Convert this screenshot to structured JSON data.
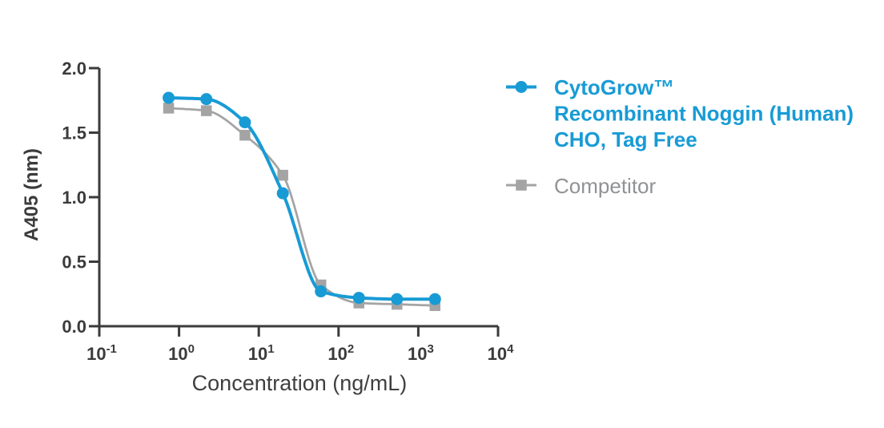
{
  "chart_data": {
    "type": "line",
    "title": "",
    "xlabel": "Concentration (ng/mL)",
    "ylabel": "A405 (nm)",
    "x_scale": "log10",
    "xlim_log": [
      -1,
      4
    ],
    "ylim": [
      0,
      2
    ],
    "grid": false,
    "legend_position": "right",
    "axis_color": "#3b3b3b",
    "x_tick_base": "10",
    "x_tick_exponents": [
      "-1",
      "0",
      "1",
      "2",
      "3",
      "4"
    ],
    "y_tick_values": [
      0,
      0.5,
      1,
      1.5,
      2
    ],
    "y_tick_labels": [
      "0.0",
      "0.5",
      "1.0",
      "1.5",
      "2.0"
    ],
    "series": [
      {
        "name": "CytoGrow™ Recombinant Noggin (Human) CHO, Tag Free",
        "legend_lines": [
          "CytoGrow™",
          "Recombinant Noggin (Human)",
          "CHO, Tag Free"
        ],
        "marker": "circle",
        "color": "#189bd5",
        "text_color": "#189bd5",
        "line_width": 4,
        "marker_size": 15,
        "x": [
          0.74,
          2.2,
          6.7,
          20,
          60,
          180,
          540,
          1620
        ],
        "y": [
          1.77,
          1.76,
          1.58,
          1.03,
          0.27,
          0.22,
          0.21,
          0.21
        ]
      },
      {
        "name": "Competitor",
        "legend_lines": [
          "Competitor"
        ],
        "marker": "square",
        "color": "#a4a4a4",
        "text_color": "#919295",
        "line_width": 2.75,
        "marker_size": 13.5,
        "x": [
          0.74,
          2.2,
          6.7,
          20,
          60,
          180,
          540,
          1620
        ],
        "y": [
          1.69,
          1.67,
          1.48,
          1.17,
          0.32,
          0.18,
          0.17,
          0.16
        ]
      }
    ]
  }
}
